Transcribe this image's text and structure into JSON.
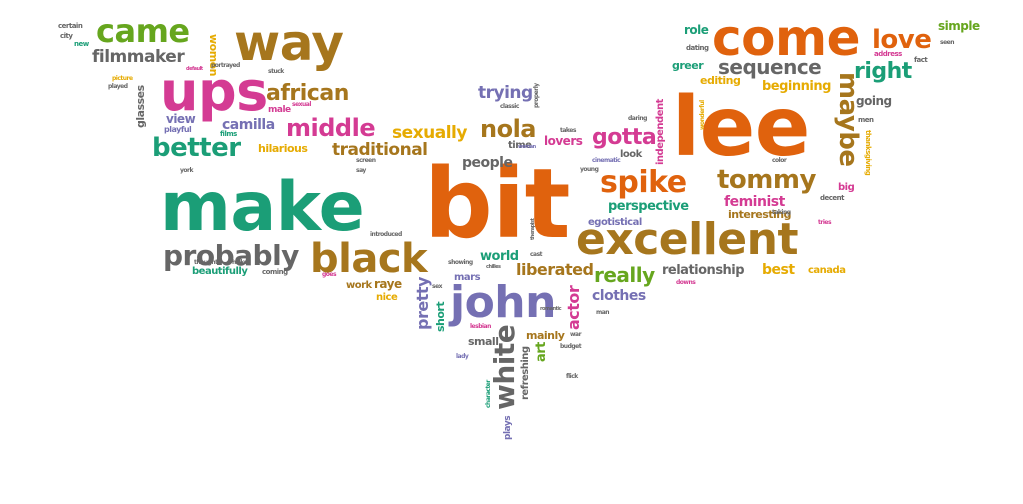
{
  "palette": {
    "orange": "#e0620d",
    "green": "#1b9e77",
    "magenta": "#d43b93",
    "olive": "#a6761d",
    "purple": "#7570b3",
    "lime": "#66a61e",
    "gray": "#666666",
    "gold": "#e6ab02"
  },
  "words": [
    {
      "text": "bit",
      "color": "orange"
    },
    {
      "text": "make",
      "color": "green"
    },
    {
      "text": "lee",
      "color": "orange"
    },
    {
      "text": "come",
      "color": "orange"
    },
    {
      "text": "ups",
      "color": "magenta"
    },
    {
      "text": "way",
      "color": "olive"
    },
    {
      "text": "excellent",
      "color": "olive"
    },
    {
      "text": "john",
      "color": "purple"
    },
    {
      "text": "black",
      "color": "olive"
    },
    {
      "text": "came",
      "color": "lime"
    },
    {
      "text": "probably",
      "color": "gray"
    },
    {
      "text": "love",
      "color": "orange"
    },
    {
      "text": "spike",
      "color": "orange"
    },
    {
      "text": "tommy",
      "color": "olive"
    },
    {
      "text": "maybe",
      "color": "olive"
    },
    {
      "text": "african",
      "color": "olive"
    },
    {
      "text": "middle",
      "color": "magenta"
    },
    {
      "text": "better",
      "color": "green"
    },
    {
      "text": "nola",
      "color": "olive"
    },
    {
      "text": "right",
      "color": "green"
    },
    {
      "text": "white",
      "color": "gray"
    },
    {
      "text": "sequence",
      "color": "gray"
    },
    {
      "text": "gotta",
      "color": "magenta"
    },
    {
      "text": "sexually",
      "color": "gold"
    },
    {
      "text": "traditional",
      "color": "olive"
    },
    {
      "text": "really",
      "color": "lime"
    },
    {
      "text": "filmmaker",
      "color": "gray"
    },
    {
      "text": "liberated",
      "color": "olive"
    },
    {
      "text": "camilla",
      "color": "purple"
    },
    {
      "text": "trying",
      "color": "purple"
    },
    {
      "text": "perspective",
      "color": "green"
    },
    {
      "text": "feminist",
      "color": "magenta"
    },
    {
      "text": "actor",
      "color": "magenta"
    },
    {
      "text": "pretty",
      "color": "purple"
    },
    {
      "text": "relationship",
      "color": "gray"
    },
    {
      "text": "people",
      "color": "gray"
    },
    {
      "text": "clothes",
      "color": "purple"
    },
    {
      "text": "interesting",
      "color": "olive"
    },
    {
      "text": "world",
      "color": "green"
    },
    {
      "text": "best",
      "color": "gold"
    },
    {
      "text": "women",
      "color": "gold"
    },
    {
      "text": "beginning",
      "color": "gold"
    },
    {
      "text": "going",
      "color": "gray"
    },
    {
      "text": "lovers",
      "color": "magenta"
    },
    {
      "text": "simple",
      "color": "lime"
    },
    {
      "text": "role",
      "color": "green"
    },
    {
      "text": "raye",
      "color": "olive"
    },
    {
      "text": "short",
      "color": "green"
    },
    {
      "text": "mainly",
      "color": "olive"
    },
    {
      "text": "hilarious",
      "color": "gold"
    },
    {
      "text": "editing",
      "color": "gold"
    },
    {
      "text": "greer",
      "color": "green"
    },
    {
      "text": "canada",
      "color": "gold"
    },
    {
      "text": "beautifully",
      "color": "green"
    },
    {
      "text": "art",
      "color": "lime"
    },
    {
      "text": "view",
      "color": "purple"
    },
    {
      "text": "glasses",
      "color": "gray"
    },
    {
      "text": "small",
      "color": "gray"
    },
    {
      "text": "refreshing",
      "color": "gray"
    },
    {
      "text": "egotistical",
      "color": "purple"
    },
    {
      "text": "look",
      "color": "gray"
    },
    {
      "text": "independent",
      "color": "magenta"
    },
    {
      "text": "nice",
      "color": "gold"
    },
    {
      "text": "work",
      "color": "olive"
    },
    {
      "text": "mars",
      "color": "purple"
    },
    {
      "text": "time",
      "color": "gray"
    },
    {
      "text": "big",
      "color": "magenta"
    },
    {
      "text": "thanksgiving",
      "color": "gold"
    },
    {
      "text": "plays",
      "color": "purple"
    },
    {
      "text": "male",
      "color": "magenta"
    },
    {
      "text": "playful",
      "color": "purple"
    },
    {
      "text": "films",
      "color": "green"
    },
    {
      "text": "coming",
      "color": "gray"
    },
    {
      "text": "certain",
      "color": "gray"
    },
    {
      "text": "city",
      "color": "gray"
    },
    {
      "text": "new",
      "color": "green"
    },
    {
      "text": "decent",
      "color": "gray"
    },
    {
      "text": "address",
      "color": "magenta"
    },
    {
      "text": "fact",
      "color": "gray"
    },
    {
      "text": "seen",
      "color": "gray"
    },
    {
      "text": "dating",
      "color": "gray"
    },
    {
      "text": "men",
      "color": "gray"
    },
    {
      "text": "color",
      "color": "gray"
    },
    {
      "text": "tries",
      "color": "magenta"
    },
    {
      "text": "taking",
      "color": "gray"
    },
    {
      "text": "daring",
      "color": "gray"
    },
    {
      "text": "wonderful",
      "color": "gold"
    },
    {
      "text": "takes",
      "color": "gray"
    },
    {
      "text": "woman",
      "color": "purple"
    },
    {
      "text": "classic",
      "color": "gray"
    },
    {
      "text": "cinematic",
      "color": "purple"
    },
    {
      "text": "young",
      "color": "gray"
    },
    {
      "text": "picture",
      "color": "gold"
    },
    {
      "text": "played",
      "color": "gray"
    },
    {
      "text": "portrayed",
      "color": "gray"
    },
    {
      "text": "stuck",
      "color": "gray"
    },
    {
      "text": "sexual",
      "color": "magenta"
    },
    {
      "text": "default",
      "color": "magenta"
    },
    {
      "text": "screen",
      "color": "gray"
    },
    {
      "text": "say",
      "color": "gray"
    },
    {
      "text": "york",
      "color": "gray"
    },
    {
      "text": "thought",
      "color": "gray"
    },
    {
      "text": "hicks",
      "color": "gray"
    },
    {
      "text": "goes",
      "color": "magenta"
    },
    {
      "text": "introduced",
      "color": "gray"
    },
    {
      "text": "showing",
      "color": "gray"
    },
    {
      "text": "chilles",
      "color": "gray"
    },
    {
      "text": "sex",
      "color": "gray"
    },
    {
      "text": "lesbian",
      "color": "magenta"
    },
    {
      "text": "romantic",
      "color": "gray"
    },
    {
      "text": "war",
      "color": "gray"
    },
    {
      "text": "budget",
      "color": "gray"
    },
    {
      "text": "flick",
      "color": "gray"
    },
    {
      "text": "lady",
      "color": "purple"
    },
    {
      "text": "character",
      "color": "green"
    },
    {
      "text": "cast",
      "color": "gray"
    },
    {
      "text": "therapist",
      "color": "gray"
    },
    {
      "text": "man",
      "color": "gray"
    },
    {
      "text": "downs",
      "color": "magenta"
    },
    {
      "text": "properly",
      "color": "gray"
    }
  ]
}
